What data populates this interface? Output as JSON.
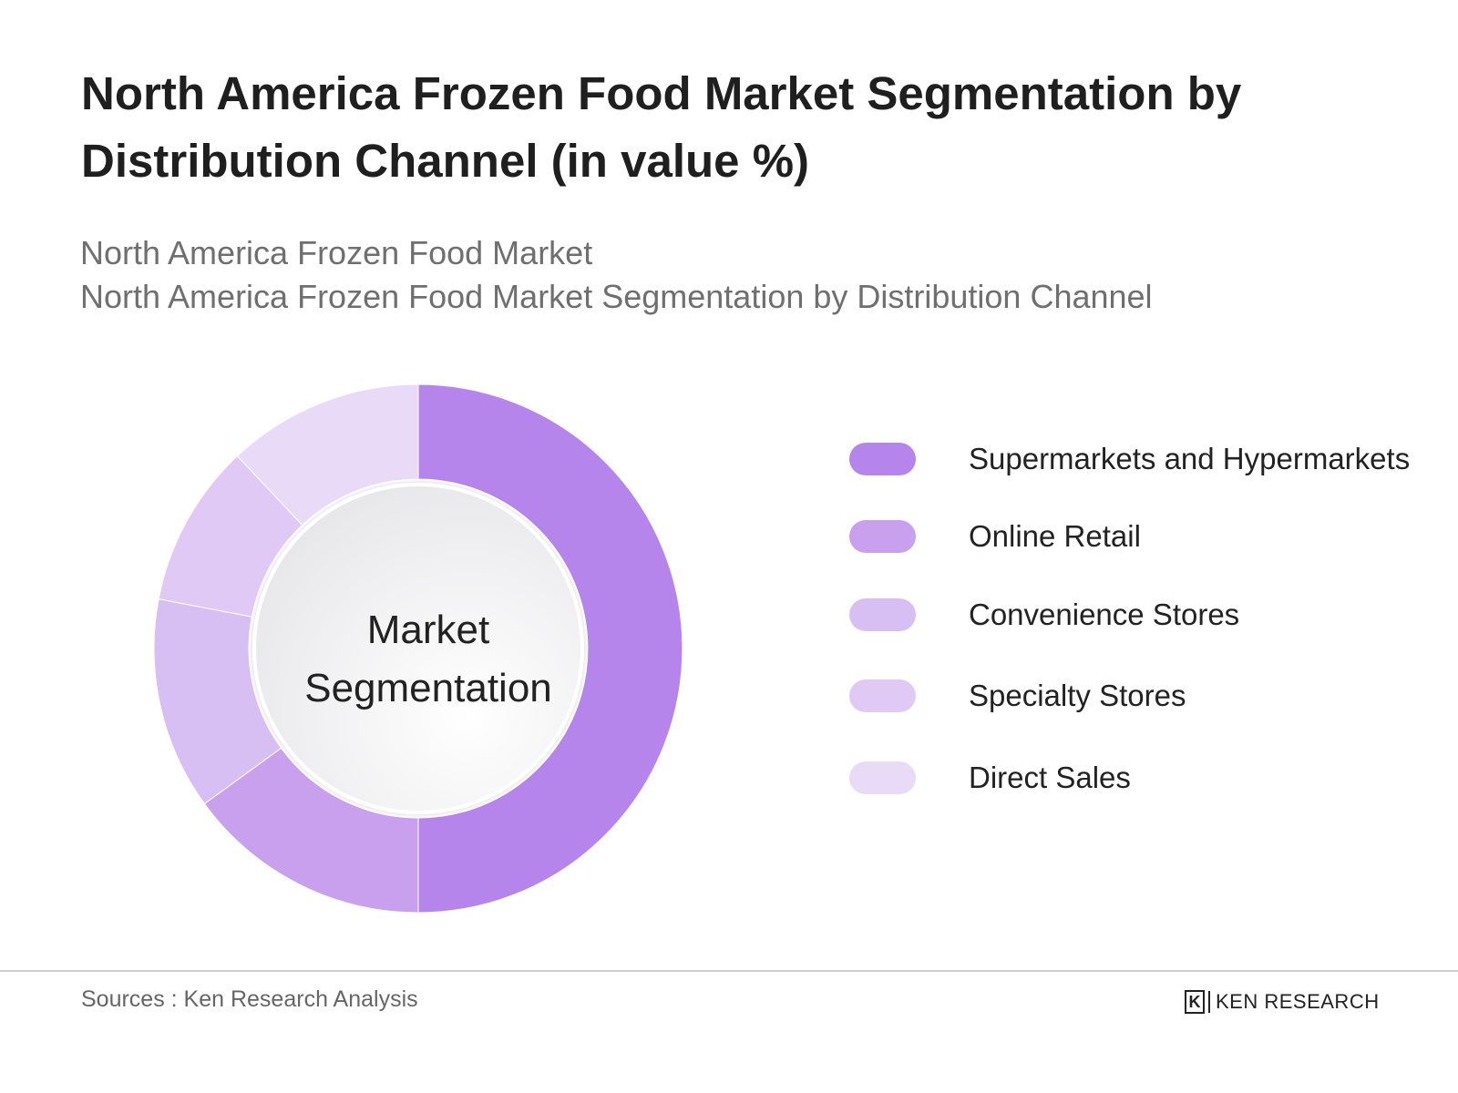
{
  "title": "North America Frozen Food Market Segmentation by Distribution Channel (in value %)",
  "subtitle": {
    "line1": "North America Frozen Food Market",
    "line2": "North America Frozen Food Market Segmentation by Distribution Channel"
  },
  "center_label": {
    "line1": "Market",
    "line2": "Segmentation"
  },
  "chart_data": {
    "type": "pie",
    "variant": "donut",
    "title": "North America Frozen Food Market Segmentation by Distribution Channel (in value %)",
    "categories": [
      "Supermarkets and Hypermarkets",
      "Online Retail",
      "Convenience Stores",
      "Specialty Stores",
      "Direct Sales"
    ],
    "values": [
      50,
      15,
      13,
      10,
      12
    ],
    "colors": [
      "#b585eb",
      "#c8a0ee",
      "#d8bff3",
      "#e0c9f5",
      "#e9daf8"
    ],
    "legend_position": "right"
  },
  "footer": {
    "sources": "Sources : Ken Research Analysis",
    "brand": "KEN RESEARCH",
    "brand_mark": "K"
  }
}
